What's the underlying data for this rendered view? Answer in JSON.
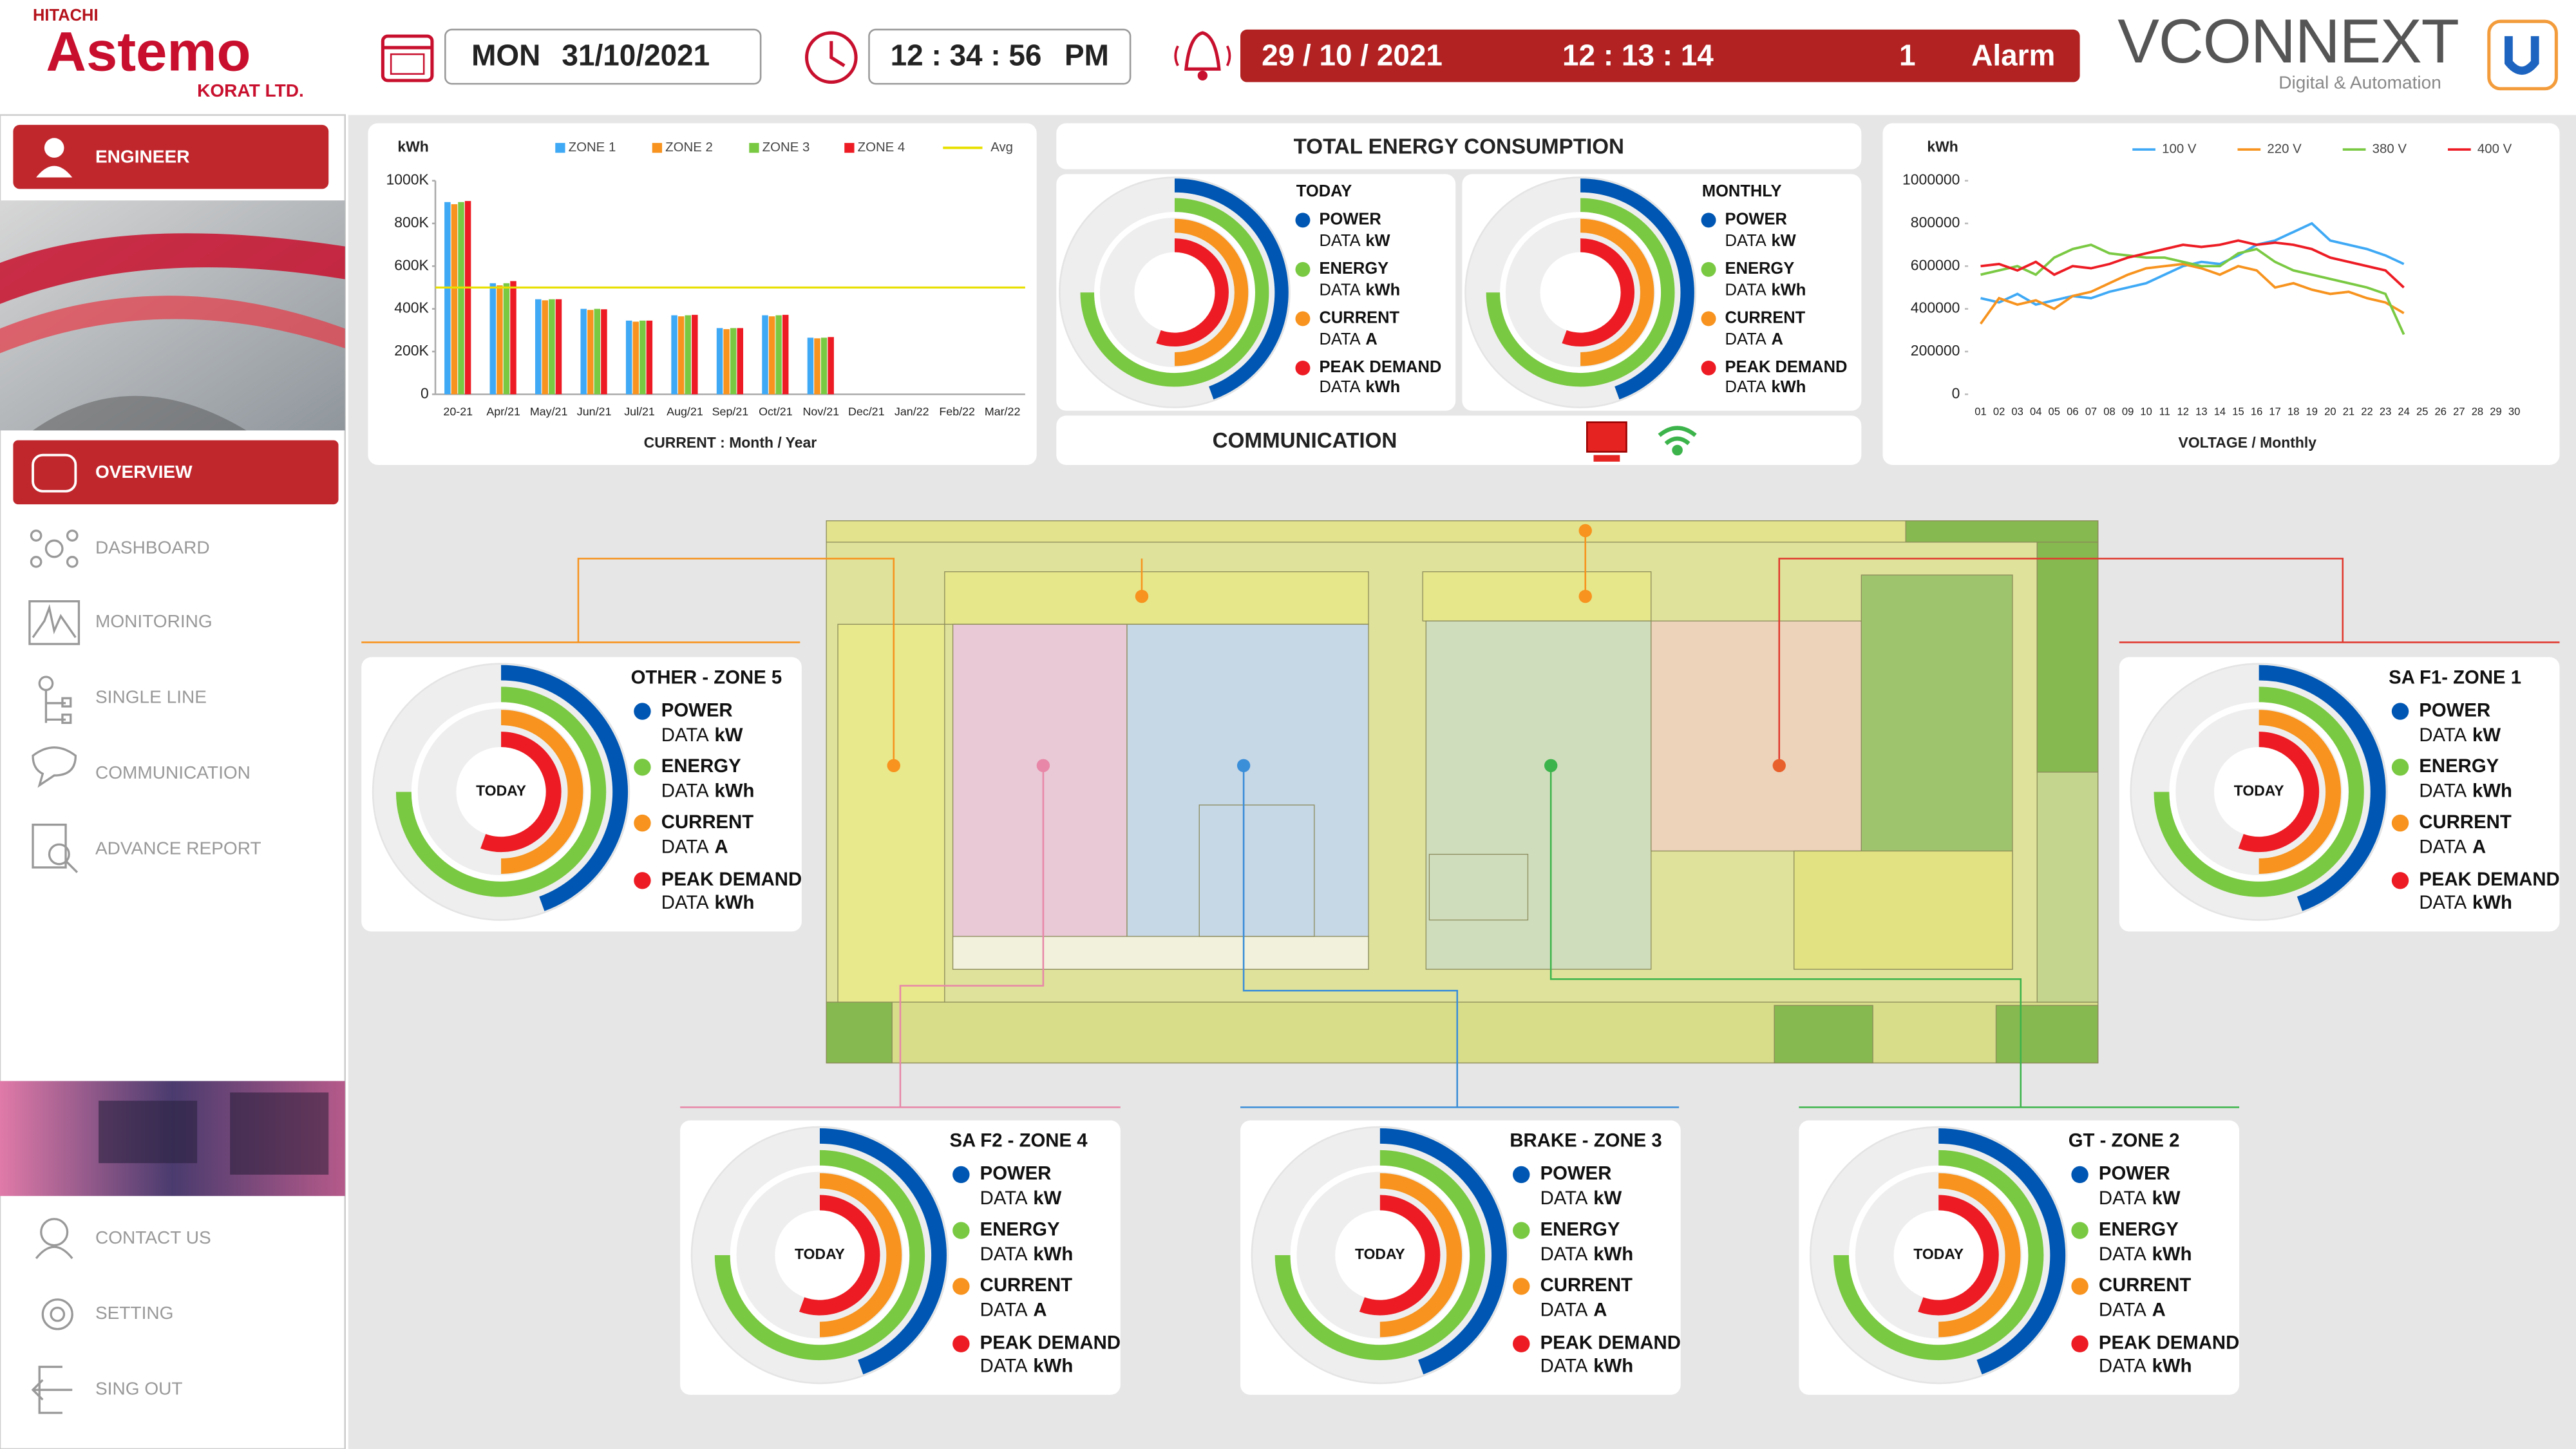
{
  "header": {
    "brand_top": "HITACHI",
    "brand": "Astemo",
    "brand_sub": "KORAT LTD.",
    "day": "MON",
    "date": "31/10/2021",
    "time": "12 : 34 : 56",
    "ampm": "PM",
    "alarm_date": "29 / 10 / 2021",
    "alarm_time": "12 : 13 : 14",
    "alarm_count": "1",
    "alarm_label": "Alarm",
    "vendor": "VCONNEXT",
    "vendor_sub": "Digital & Automation"
  },
  "sidebar": {
    "user": "ENGINEER",
    "menu": [
      "OVERVIEW",
      "DASHBOARD",
      "MONITORING",
      "SINGLE LINE",
      "COMMUNICATION",
      "ADVANCE REPORT"
    ],
    "footer_menu": [
      "CONTACT US",
      "SETTING",
      "SING OUT"
    ]
  },
  "bar_chart": {
    "type": "bar",
    "y_label": "kWh",
    "x_label": "CURRENT : Month / Year",
    "categories": [
      "20-21",
      "Apr/21",
      "May/21",
      "Jun/21",
      "Jul/21",
      "Aug/21",
      "Sep/21",
      "Oct/21",
      "Nov/21",
      "Dec/21",
      "Jan/22",
      "Feb/22",
      "Mar/22"
    ],
    "series": [
      {
        "name": "ZONE 1",
        "color": "#3fa9f5",
        "values": [
          900000,
          520000,
          445000,
          400000,
          345000,
          370000,
          310000,
          370000,
          265000,
          null,
          null,
          null,
          null
        ]
      },
      {
        "name": "ZONE 2",
        "color": "#f7931e",
        "values": [
          890000,
          510000,
          440000,
          395000,
          340000,
          365000,
          305000,
          365000,
          262000,
          null,
          null,
          null,
          null
        ]
      },
      {
        "name": "ZONE 3",
        "color": "#7ac943",
        "values": [
          900000,
          520000,
          445000,
          400000,
          345000,
          370000,
          310000,
          370000,
          265000,
          null,
          null,
          null,
          null
        ]
      },
      {
        "name": "ZONE 4",
        "color": "#ed1c24",
        "values": [
          905000,
          530000,
          445000,
          398000,
          345000,
          372000,
          310000,
          372000,
          268000,
          null,
          null,
          null,
          null
        ]
      }
    ],
    "avg": {
      "name": "Avg",
      "color": "#e8e000",
      "value": 500000
    },
    "ylim": [
      0,
      1000000
    ],
    "yticks": [
      0,
      {
        "value": 200000,
        "label": "200K"
      },
      {
        "value": 400000,
        "label": "400K"
      },
      {
        "value": 600000,
        "label": "600K"
      },
      {
        "value": 800000,
        "label": "800K"
      },
      {
        "value": 1000000,
        "label": "1000K"
      }
    ]
  },
  "energy_panel": {
    "title": "TOTAL ENERGY CONSUMPTION",
    "cards": [
      {
        "title": "TODAY"
      },
      {
        "title": "MONTHLY"
      }
    ],
    "communication": "COMMUNICATION"
  },
  "legend": [
    {
      "label": "POWER",
      "data": "DATA",
      "unit": "kW",
      "color": "#0057b3"
    },
    {
      "label": "ENERGY",
      "data": "DATA",
      "unit": "kWh",
      "color": "#7ac943"
    },
    {
      "label": "CURRENT",
      "data": "DATA",
      "unit": "A",
      "color": "#f7931e"
    },
    {
      "label": "PEAK DEMAND",
      "data": "DATA",
      "unit": "kWh",
      "color": "#ed1c24"
    }
  ],
  "zones": [
    {
      "title": "OTHER - ZONE 5",
      "center": "TODAY"
    },
    {
      "title": "SA F1- ZONE 1",
      "center": "TODAY"
    },
    {
      "title": "SA F2 - ZONE 4",
      "center": "TODAY"
    },
    {
      "title": "BRAKE - ZONE 3",
      "center": "TODAY"
    },
    {
      "title": "GT - ZONE 2",
      "center": "TODAY"
    }
  ],
  "line_chart": {
    "type": "line",
    "y_label": "kWh",
    "x_label": "VOLTAGE / Monthly",
    "categories": [
      "01",
      "02",
      "03",
      "04",
      "05",
      "06",
      "07",
      "08",
      "09",
      "10",
      "11",
      "12",
      "13",
      "14",
      "15",
      "16",
      "17",
      "18",
      "19",
      "20",
      "21",
      "22",
      "23",
      "24",
      "25",
      "26",
      "27",
      "28",
      "29",
      "30"
    ],
    "series": [
      {
        "name": "100 V",
        "color": "#3fa9f5",
        "values": [
          450000,
          430000,
          470000,
          420000,
          440000,
          460000,
          450000,
          480000,
          500000,
          520000,
          560000,
          600000,
          620000,
          610000,
          650000,
          700000,
          720000,
          760000,
          800000,
          720000,
          700000,
          680000,
          650000,
          610000,
          null,
          null,
          null,
          null,
          null,
          null
        ]
      },
      {
        "name": "220 V",
        "color": "#f7931e",
        "values": [
          330000,
          450000,
          420000,
          440000,
          400000,
          460000,
          480000,
          520000,
          560000,
          590000,
          600000,
          610000,
          590000,
          560000,
          600000,
          580000,
          500000,
          520000,
          490000,
          470000,
          480000,
          450000,
          430000,
          380000,
          null,
          null,
          null,
          null,
          null,
          null
        ]
      },
      {
        "name": "380 V",
        "color": "#7ac943",
        "values": [
          560000,
          580000,
          600000,
          560000,
          640000,
          680000,
          700000,
          660000,
          650000,
          640000,
          640000,
          620000,
          600000,
          600000,
          660000,
          680000,
          620000,
          580000,
          560000,
          540000,
          520000,
          500000,
          470000,
          280000,
          null,
          null,
          null,
          null,
          null,
          null
        ]
      },
      {
        "name": "400 V",
        "color": "#ed1c24",
        "values": [
          600000,
          610000,
          580000,
          620000,
          560000,
          600000,
          590000,
          610000,
          640000,
          660000,
          680000,
          700000,
          690000,
          700000,
          720000,
          700000,
          710000,
          700000,
          680000,
          640000,
          620000,
          600000,
          580000,
          500000,
          null,
          null,
          null,
          null,
          null,
          null
        ]
      }
    ],
    "ylim": [
      0,
      1000000
    ],
    "yticks": [
      0,
      200000,
      400000,
      600000,
      800000,
      1000000
    ]
  }
}
